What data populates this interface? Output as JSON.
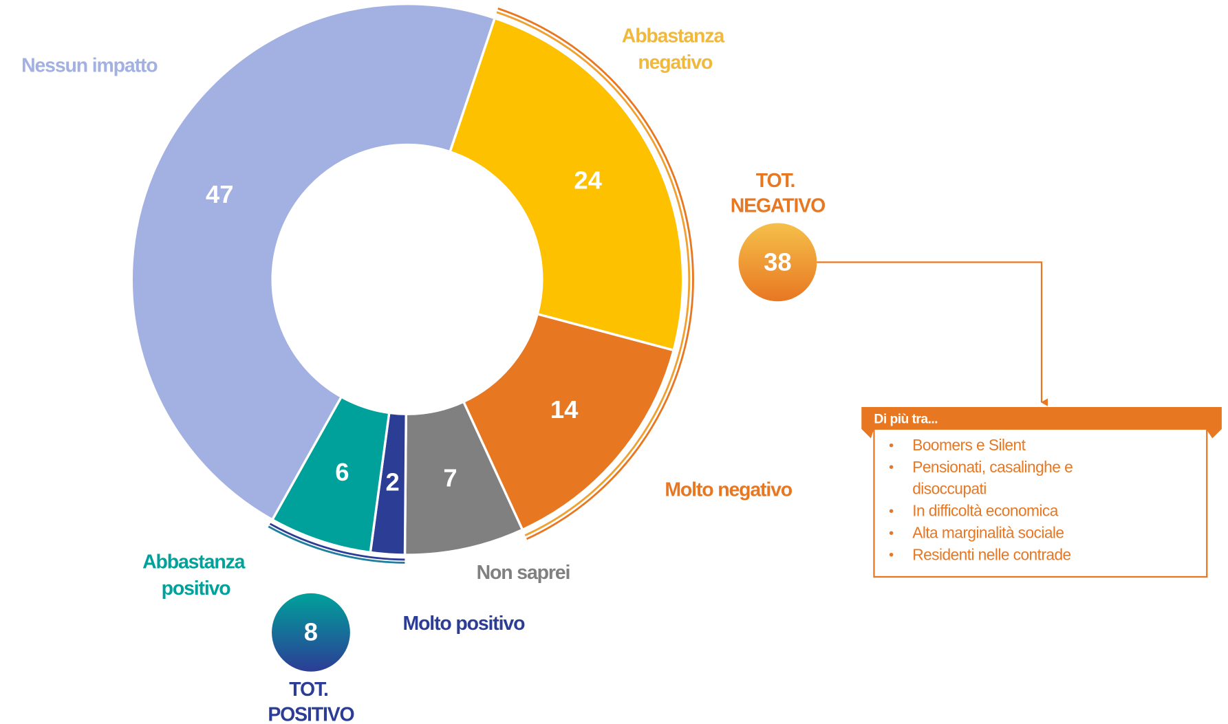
{
  "chart_data": {
    "type": "pie",
    "categories": [
      "Abbastanza negativo",
      "Molto negativo",
      "Non saprei",
      "Molto positivo",
      "Abbastanza positivo",
      "Nessun impatto"
    ],
    "values": [
      24,
      14,
      7,
      2,
      6,
      47
    ],
    "colors": [
      "#fdc100",
      "#e87722",
      "#808080",
      "#2c3d96",
      "#00a19b",
      "#a2b0e2"
    ],
    "totals": [
      {
        "label": "TOT. NEGATIVO",
        "value": 38
      },
      {
        "label": "TOT. POSITIVO",
        "value": 8
      }
    ]
  },
  "callout": {
    "title": "Di più tra...",
    "items": [
      "Boomers e Silent",
      "Pensionati, casalinghe e disoccupati",
      "In difficoltà economica",
      "Alta marginalità sociale",
      "Residenti nelle contrade"
    ]
  }
}
